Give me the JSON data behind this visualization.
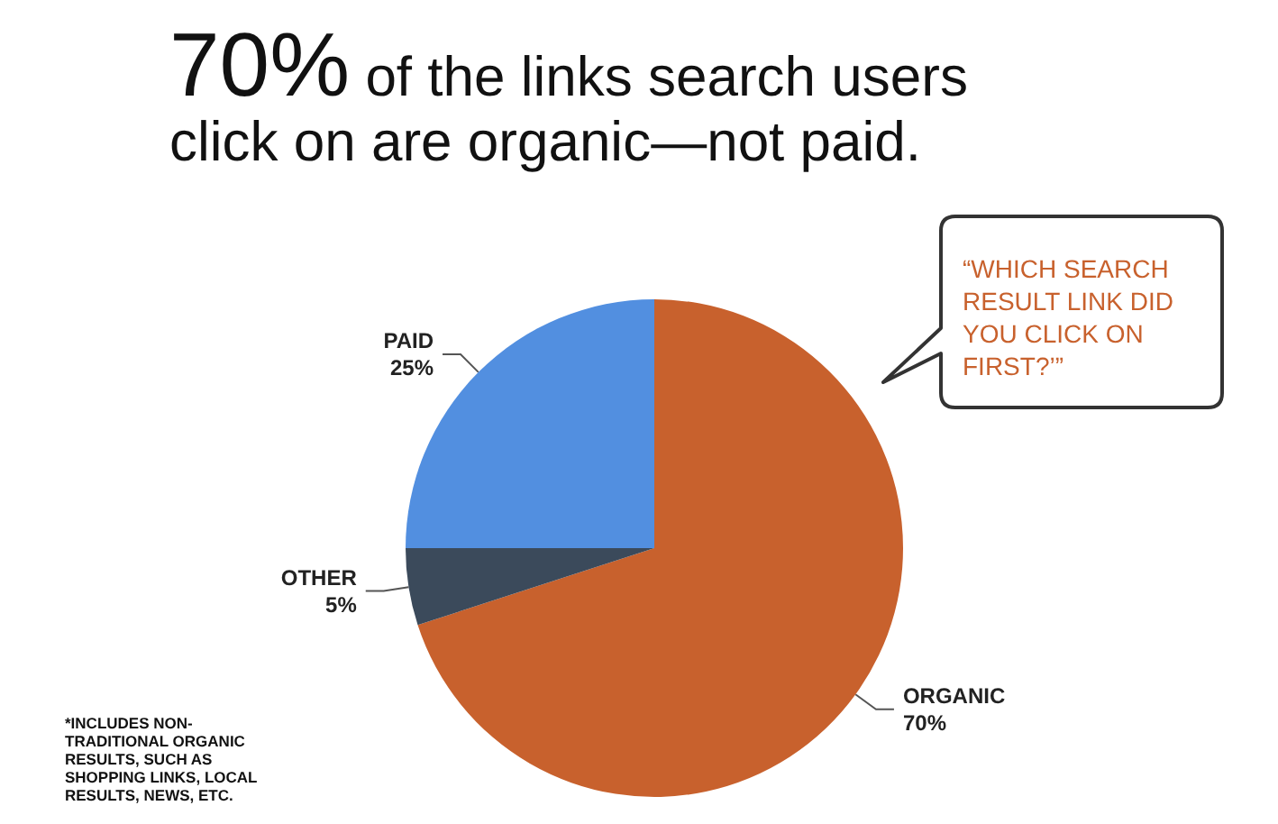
{
  "chart_data": {
    "type": "pie",
    "title": "70% of the links search users click on are organic—not paid.",
    "categories": [
      "ORGANIC",
      "OTHER",
      "PAID"
    ],
    "values": [
      70,
      5,
      25
    ],
    "colors": [
      "#c8612d",
      "#3b4a5b",
      "#528fe0"
    ],
    "value_labels": [
      "70%",
      "5%",
      "25%"
    ],
    "legend": false,
    "annotations": [
      "“WHICH SEARCH RESULT LINK DID YOU CLICK ON FIRST?’”",
      "*INCLUDES NON-TRADITIONAL ORGANIC RESULTS, SUCH AS SHOPPING LINKS, LOCAL RESULTS, NEWS, ETC."
    ]
  }
}
